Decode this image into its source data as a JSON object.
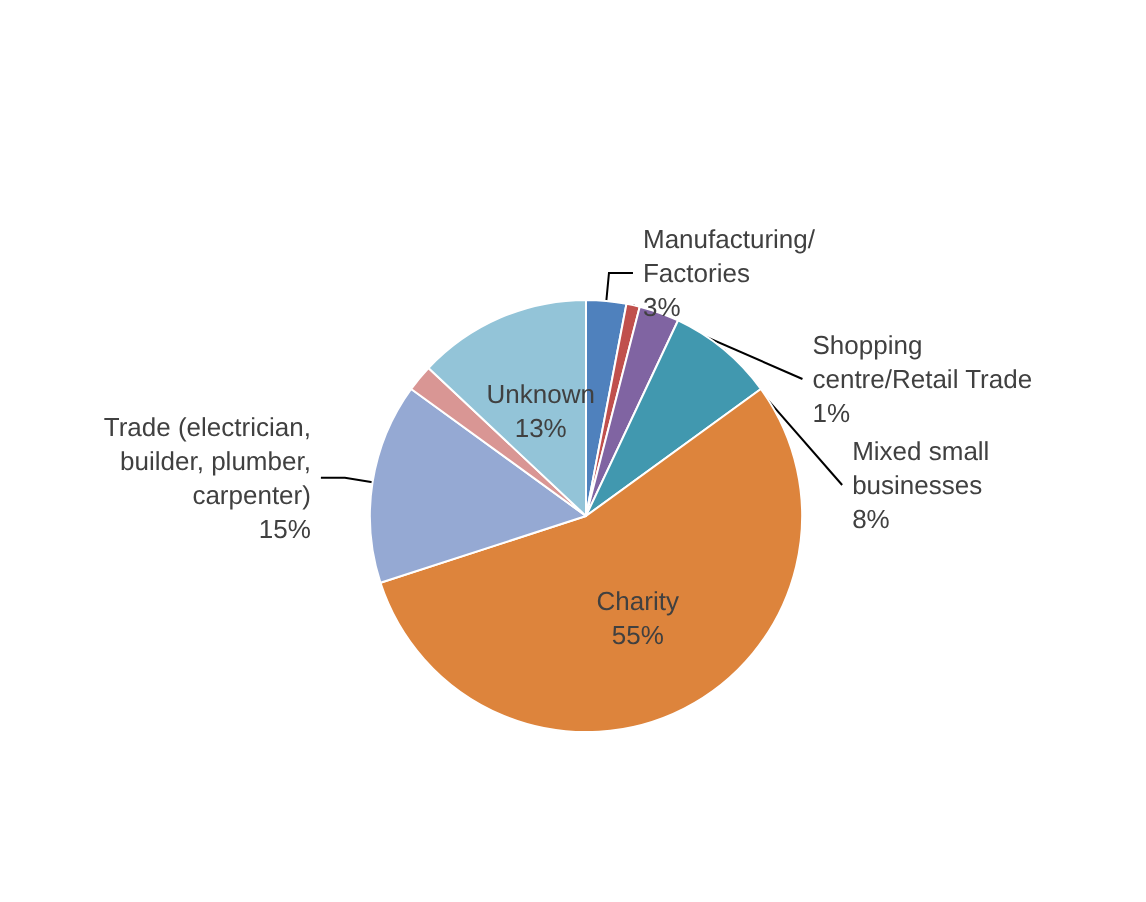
{
  "chart_data": {
    "type": "pie",
    "categories": [
      "Manufacturing/\nFactories",
      "Shopping\ncentre/Retail Trade",
      null,
      "Mixed small\nbusinesses",
      "Charity",
      "Trade (electrician,\nbuilder, plumber,\ncarpenter)",
      null,
      "Unknown"
    ],
    "values": [
      3,
      1,
      3,
      8,
      55,
      15,
      2,
      13
    ],
    "colors": [
      "#4f81bd",
      "#c0504d",
      "#8064a2",
      "#4198af",
      "#dd843c",
      "#95a9d3",
      "#d99694",
      "#93c4d8"
    ],
    "value_labels": [
      "3%",
      "1%",
      null,
      "8%",
      "55%",
      "15%",
      null,
      "13%"
    ],
    "legend": false
  }
}
